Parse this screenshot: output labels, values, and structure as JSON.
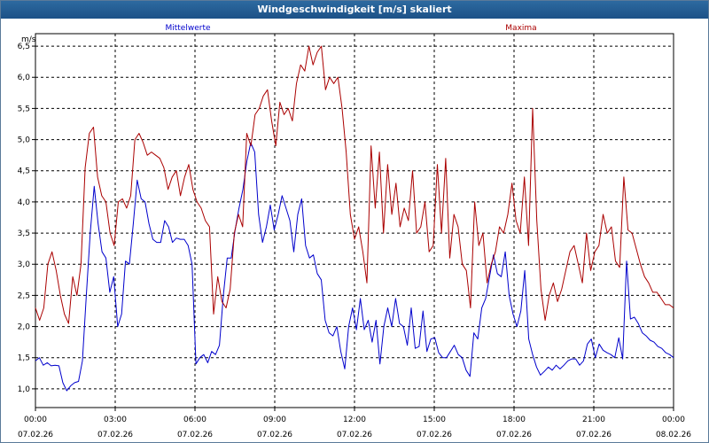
{
  "chart_data": {
    "type": "line",
    "title": "Windgeschwindigkeit [m/s] skaliert",
    "ylabel": "m/s",
    "ylim": [
      0.7,
      6.7
    ],
    "xlim": [
      0,
      24
    ],
    "yticks": [
      1.0,
      1.5,
      2.0,
      2.5,
      3.0,
      3.5,
      4.0,
      4.5,
      5.0,
      5.5,
      6.0,
      6.5
    ],
    "ytick_labels": [
      "1,0",
      "1,5",
      "2,0",
      "2,5",
      "3,0",
      "3,5",
      "4,0",
      "4,5",
      "5,0",
      "5,5",
      "6,0",
      "6,5"
    ],
    "xticks": [
      0,
      3,
      6,
      9,
      12,
      15,
      18,
      21,
      24
    ],
    "xtick_times": [
      "00:00",
      "03:00",
      "06:00",
      "09:00",
      "12:00",
      "15:00",
      "18:00",
      "21:00",
      "00:00"
    ],
    "xtick_dates": [
      "07.02.26",
      "07.02.26",
      "07.02.26",
      "07.02.26",
      "07.02.26",
      "07.02.26",
      "07.02.26",
      "07.02.26",
      "08.02.26"
    ],
    "grid": true,
    "series": [
      {
        "name": "Mittelwerte",
        "color": "#0000cc",
        "values": [
          1.45,
          1.5,
          1.38,
          1.42,
          1.37,
          1.38,
          1.37,
          1.1,
          0.97,
          1.05,
          1.1,
          1.12,
          1.45,
          2.5,
          3.5,
          4.25,
          3.65,
          3.2,
          3.1,
          2.55,
          2.8,
          2.0,
          2.2,
          3.05,
          3.0,
          3.65,
          4.35,
          4.05,
          4.0,
          3.65,
          3.4,
          3.35,
          3.35,
          3.7,
          3.6,
          3.35,
          3.42,
          3.4,
          3.4,
          3.3,
          3.0,
          1.4,
          1.5,
          1.55,
          1.42,
          1.6,
          1.55,
          1.7,
          2.5,
          3.1,
          3.1,
          3.55,
          3.9,
          4.2,
          4.65,
          4.95,
          4.8,
          3.8,
          3.35,
          3.6,
          3.95,
          3.55,
          3.8,
          4.1,
          3.9,
          3.7,
          3.2,
          3.8,
          4.05,
          3.3,
          3.1,
          3.15,
          2.85,
          2.75,
          2.1,
          1.9,
          1.85,
          2.0,
          1.6,
          1.32,
          2.0,
          2.3,
          1.95,
          2.45,
          1.95,
          2.1,
          1.75,
          2.1,
          1.4,
          2.0,
          2.3,
          2.0,
          2.45,
          2.05,
          2.0,
          1.7,
          2.3,
          1.65,
          1.68,
          2.25,
          1.6,
          1.8,
          1.82,
          1.58,
          1.5,
          1.5,
          1.6,
          1.7,
          1.55,
          1.5,
          1.3,
          1.2,
          1.9,
          1.8,
          2.3,
          2.45,
          2.8,
          3.15,
          2.85,
          2.8,
          3.2,
          2.5,
          2.2,
          2.0,
          2.25,
          2.9,
          1.8,
          1.55,
          1.35,
          1.22,
          1.28,
          1.35,
          1.3,
          1.38,
          1.32,
          1.38,
          1.45,
          1.48,
          1.48,
          1.38,
          1.45,
          1.72,
          1.8,
          1.5,
          1.72,
          1.62,
          1.58,
          1.55,
          1.5
        ],
        "ext_values": [
          1.98,
          1.82,
          1.48,
          3.05,
          2.12,
          2.15,
          2.05,
          1.9,
          1.85,
          1.78,
          1.75,
          1.68,
          1.65,
          1.58,
          1.55,
          1.5
        ]
      },
      {
        "name": "Maxima",
        "color": "#aa0000",
        "values": [
          2.3,
          2.1,
          2.3,
          3.0,
          3.2,
          2.9,
          2.5,
          2.2,
          2.05,
          2.8,
          2.5,
          3.0,
          4.55,
          5.1,
          5.2,
          4.4,
          4.1,
          4.0,
          3.5,
          3.3,
          4.0,
          4.05,
          3.9,
          4.1,
          5.0,
          5.1,
          4.95,
          4.75,
          4.8,
          4.75,
          4.7,
          4.55,
          4.2,
          4.4,
          4.5,
          4.1,
          4.4,
          4.6,
          4.2,
          4.0,
          3.9,
          3.7,
          3.6,
          2.2,
          2.8,
          2.4,
          2.3,
          2.6,
          3.5,
          3.8,
          3.6,
          5.1,
          4.9,
          5.4,
          5.5,
          5.7,
          5.8,
          5.3,
          4.9,
          5.6,
          5.4,
          5.5,
          5.3,
          5.9,
          6.2,
          6.1,
          6.5,
          6.2,
          6.4,
          6.5,
          5.8,
          6.0,
          5.9,
          6.0,
          5.5,
          4.8,
          3.8,
          3.4,
          3.6,
          3.2,
          2.7,
          4.9,
          3.9,
          4.8,
          3.5,
          4.6,
          3.8,
          4.3,
          3.6,
          3.9,
          3.7,
          4.5,
          3.5,
          3.6,
          4.0,
          3.2,
          3.3,
          4.6,
          3.5,
          4.7,
          3.1,
          3.8,
          3.6,
          3.0,
          2.9,
          2.3,
          4.0,
          3.3,
          3.5,
          2.7,
          3.0,
          3.2,
          3.6,
          3.5,
          3.8,
          4.3,
          3.7,
          3.5,
          4.4,
          3.3,
          5.5,
          3.7,
          2.6,
          2.1,
          2.5,
          2.7,
          2.4,
          2.6,
          2.9,
          3.2,
          3.3,
          3.0,
          2.7,
          3.5,
          2.9,
          3.2,
          3.3,
          3.8,
          3.5,
          3.6
        ],
        "ext_values": [
          2.3,
          3.05,
          2.95,
          4.4,
          3.55,
          3.5,
          3.25,
          3.0,
          2.8,
          2.7,
          2.55,
          2.55,
          2.45,
          2.35,
          2.35,
          2.3
        ]
      }
    ]
  }
}
